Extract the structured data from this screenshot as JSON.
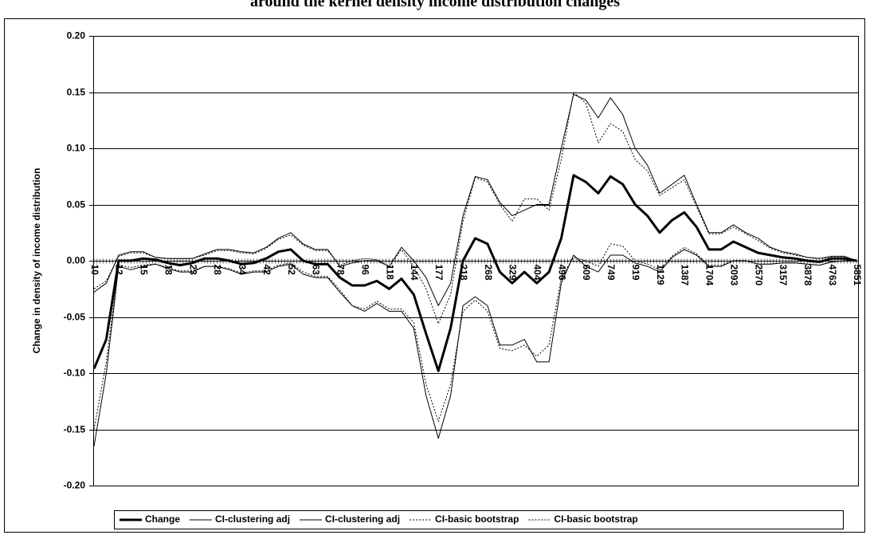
{
  "chart_data": {
    "type": "line",
    "title": "around the kernel density income distribution changes",
    "y_label": "Change in density of income distribution",
    "categories": [
      "10",
      null,
      "12",
      null,
      "15",
      null,
      "18",
      null,
      "23",
      null,
      "28",
      null,
      "34",
      null,
      "42",
      null,
      "52",
      null,
      "63",
      null,
      "78",
      null,
      "96",
      null,
      "118",
      null,
      "144",
      null,
      "177",
      null,
      "218",
      null,
      "268",
      null,
      "329",
      null,
      "404",
      null,
      "496",
      null,
      "609",
      null,
      "749",
      null,
      "919",
      null,
      "1129",
      null,
      "1387",
      null,
      "1704",
      null,
      "2093",
      null,
      "2570",
      null,
      "3157",
      null,
      "3878",
      null,
      "4763",
      null,
      "5851"
    ],
    "ylim": [
      -0.2,
      0.2
    ],
    "yticks": [
      {
        "value": -0.2,
        "label": "-0.20"
      },
      -0.15,
      {
        "value": -0.1,
        "label": "-0.10"
      },
      -0.05,
      {
        "value": 0,
        "label": "0.00"
      },
      0.05,
      {
        "value": 0.1,
        "label": "0.10"
      },
      0.15,
      {
        "value": 0.2,
        "label": "0.20"
      }
    ],
    "grid": true,
    "legend": "bottom",
    "series": [
      {
        "name": "Change",
        "color": "#000000",
        "style": "bold",
        "values": [
          -0.096,
          -0.07,
          0.0,
          0.0,
          0.002,
          0.001,
          -0.002,
          -0.004,
          -0.002,
          0.002,
          0.002,
          0.0,
          -0.003,
          -0.002,
          0.002,
          0.008,
          0.01,
          0.0,
          -0.003,
          -0.003,
          -0.015,
          -0.022,
          -0.022,
          -0.018,
          -0.025,
          -0.016,
          -0.03,
          -0.065,
          -0.098,
          -0.06,
          0.0,
          0.02,
          0.015,
          -0.01,
          -0.02,
          -0.01,
          -0.02,
          -0.01,
          0.02,
          0.076,
          0.07,
          0.06,
          0.075,
          0.068,
          0.05,
          0.04,
          0.025,
          0.036,
          0.043,
          0.03,
          0.01,
          0.01,
          0.017,
          0.012,
          0.007,
          0.005,
          0.003,
          0.002,
          0.0,
          -0.001,
          0.002,
          0.002,
          0.0
        ]
      },
      {
        "name": "CI-clustering adj",
        "color": "#000000",
        "style": "solid",
        "values": [
          -0.028,
          -0.02,
          0.005,
          0.008,
          0.008,
          0.003,
          0.002,
          0.002,
          0.002,
          0.006,
          0.01,
          0.01,
          0.008,
          0.007,
          0.012,
          0.02,
          0.025,
          0.015,
          0.01,
          0.01,
          -0.005,
          -0.002,
          0.0,
          0.0,
          -0.005,
          0.012,
          0.0,
          -0.015,
          -0.04,
          -0.02,
          0.04,
          0.075,
          0.072,
          0.052,
          0.04,
          0.045,
          0.05,
          0.05,
          0.1,
          0.148,
          0.143,
          0.127,
          0.145,
          0.13,
          0.1,
          0.085,
          0.06,
          0.068,
          0.076,
          0.05,
          0.025,
          0.025,
          0.032,
          0.025,
          0.02,
          0.012,
          0.008,
          0.006,
          0.003,
          0.002,
          0.004,
          0.004,
          0.0
        ]
      },
      {
        "name": "CI-clustering adj",
        "color": "#000000",
        "style": "solid",
        "values": [
          -0.165,
          -0.1,
          -0.005,
          -0.008,
          -0.005,
          -0.003,
          -0.007,
          -0.01,
          -0.01,
          -0.005,
          -0.005,
          -0.008,
          -0.012,
          -0.01,
          -0.01,
          -0.005,
          -0.003,
          -0.012,
          -0.015,
          -0.015,
          -0.028,
          -0.04,
          -0.045,
          -0.038,
          -0.045,
          -0.045,
          -0.06,
          -0.12,
          -0.158,
          -0.12,
          -0.04,
          -0.032,
          -0.04,
          -0.075,
          -0.075,
          -0.07,
          -0.09,
          -0.09,
          -0.02,
          0.005,
          -0.005,
          -0.01,
          0.005,
          0.005,
          -0.002,
          -0.005,
          -0.01,
          0.003,
          0.01,
          0.005,
          -0.005,
          -0.005,
          0.0,
          0.0,
          -0.003,
          -0.003,
          -0.002,
          -0.002,
          -0.003,
          -0.004,
          -0.001,
          0.0,
          0.0
        ]
      },
      {
        "name": "CI-basic bootstrap",
        "color": "#000000",
        "style": "dotted",
        "values": [
          -0.025,
          -0.018,
          0.004,
          0.007,
          0.007,
          0.003,
          0.002,
          0.002,
          0.002,
          0.005,
          0.009,
          0.009,
          0.007,
          0.006,
          0.011,
          0.019,
          0.023,
          0.014,
          0.009,
          0.009,
          -0.004,
          0.0,
          0.002,
          0.001,
          -0.005,
          0.01,
          -0.005,
          -0.025,
          -0.056,
          -0.03,
          0.035,
          0.074,
          0.07,
          0.05,
          0.035,
          0.055,
          0.055,
          0.045,
          0.09,
          0.15,
          0.14,
          0.105,
          0.122,
          0.115,
          0.09,
          0.08,
          0.058,
          0.065,
          0.072,
          0.048,
          0.024,
          0.024,
          0.03,
          0.024,
          0.018,
          0.011,
          0.007,
          0.005,
          0.003,
          0.002,
          0.003,
          0.003,
          0.0
        ]
      },
      {
        "name": "CI-basic bootstrap",
        "color": "#000000",
        "style": "dotted",
        "values": [
          -0.15,
          -0.09,
          -0.004,
          -0.006,
          -0.004,
          -0.003,
          -0.006,
          -0.009,
          -0.009,
          -0.005,
          -0.005,
          -0.007,
          -0.011,
          -0.009,
          -0.009,
          -0.004,
          -0.002,
          -0.01,
          -0.014,
          -0.014,
          -0.026,
          -0.04,
          -0.043,
          -0.036,
          -0.043,
          -0.043,
          -0.055,
          -0.11,
          -0.143,
          -0.11,
          -0.045,
          -0.035,
          -0.045,
          -0.078,
          -0.08,
          -0.075,
          -0.085,
          -0.075,
          -0.015,
          0.003,
          0.0,
          -0.005,
          0.015,
          0.013,
          0.0,
          -0.003,
          -0.008,
          0.004,
          0.012,
          0.006,
          -0.004,
          -0.004,
          0.0,
          0.0,
          -0.003,
          -0.003,
          -0.002,
          -0.002,
          -0.003,
          -0.004,
          -0.001,
          0.0,
          0.0
        ]
      }
    ]
  }
}
